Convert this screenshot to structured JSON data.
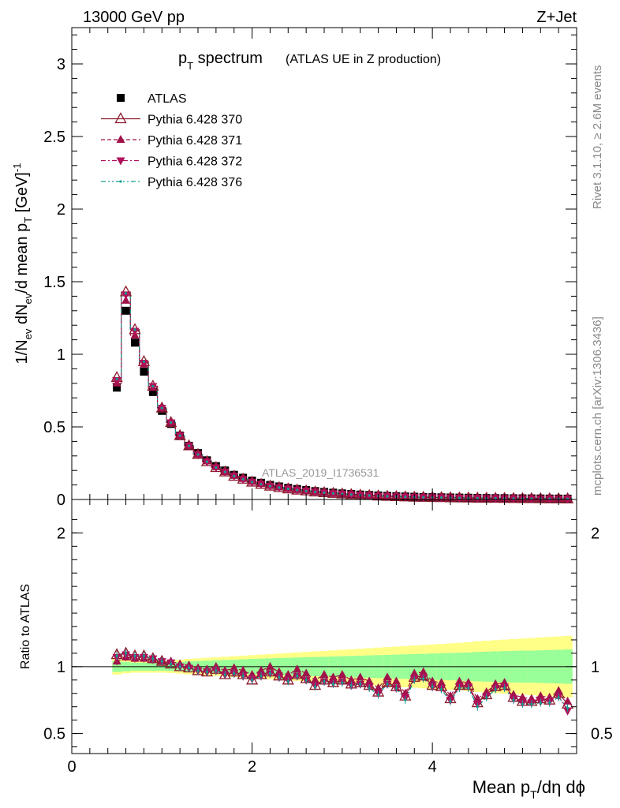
{
  "header": {
    "energy_label": "13000 GeV pp",
    "process_label": "Z+Jet"
  },
  "plot_title": {
    "main": "p",
    "main_sub": "T",
    "main_rest": " spectrum",
    "suffix": "(ATLAS UE in Z production)"
  },
  "side_labels": {
    "rivet": "Rivet 3.1.10, ≥ 2.6M events",
    "mcplots": "mcplots.cern.ch [arXiv:1306.3436]"
  },
  "watermark": "ATLAS_2019_I1736531",
  "colors": {
    "data": "#000000",
    "p370": "#8b1a2b",
    "p371": "#a0124a",
    "p372": "#b0105a",
    "p376": "#12a090",
    "band_inner": "#99ff99",
    "band_outer": "#ffff88",
    "sim_marker_fill": "#6e6e6e"
  },
  "chart_data": [
    {
      "type": "scatter",
      "title": "pT spectrum",
      "ylabel": "1/N_ev dN_ev/d mean p_T [GeV]^-1",
      "xlim": [
        0,
        5.6
      ],
      "ylim": [
        0,
        3.25
      ],
      "yticks": [
        "0",
        "0.5",
        "1",
        "1.5",
        "2",
        "2.5",
        "3"
      ],
      "legend_position": "top-left",
      "x": [
        0.5,
        0.6,
        0.7,
        0.8,
        0.9,
        1.0,
        1.1,
        1.2,
        1.3,
        1.4,
        1.5,
        1.6,
        1.7,
        1.8,
        1.9,
        2.0,
        2.1,
        2.2,
        2.3,
        2.4,
        2.5,
        2.6,
        2.7,
        2.8,
        2.9,
        3.0,
        3.1,
        3.2,
        3.3,
        3.4,
        3.5,
        3.6,
        3.7,
        3.8,
        3.9,
        4.0,
        4.1,
        4.2,
        4.3,
        4.4,
        4.5,
        4.6,
        4.7,
        4.8,
        4.9,
        5.0,
        5.1,
        5.2,
        5.3,
        5.4,
        5.5
      ],
      "series": [
        {
          "name": "ATLAS",
          "values": [
            0.77,
            1.3,
            1.08,
            0.88,
            0.74,
            0.61,
            0.52,
            0.44,
            0.37,
            0.32,
            0.27,
            0.23,
            0.2,
            0.17,
            0.15,
            0.13,
            0.115,
            0.1,
            0.09,
            0.08,
            0.072,
            0.065,
            0.058,
            0.052,
            0.047,
            0.042,
            0.038,
            0.034,
            0.031,
            0.028,
            0.025,
            0.023,
            0.021,
            0.019,
            0.017,
            0.016,
            0.015,
            0.014,
            0.013,
            0.012,
            0.011,
            0.01,
            0.0095,
            0.009,
            0.0085,
            0.008,
            0.0075,
            0.007,
            0.0066,
            0.0062,
            0.0058
          ]
        },
        {
          "name": "Pythia 6.428 370",
          "values": [
            0.84,
            1.43,
            1.17,
            0.95,
            0.78,
            0.63,
            0.53,
            0.44,
            0.37,
            0.31,
            0.26,
            0.22,
            0.19,
            0.16,
            0.14,
            0.12,
            0.105,
            0.092,
            0.082,
            0.073,
            0.065,
            0.059,
            0.052,
            0.047,
            0.042,
            0.038,
            0.034,
            0.03,
            0.027,
            0.024,
            0.022,
            0.02,
            0.018,
            0.016,
            0.015,
            0.014,
            0.013,
            0.012,
            0.011,
            0.01,
            0.0092,
            0.0085,
            0.008,
            0.0075,
            0.007,
            0.0065,
            0.006,
            0.0056,
            0.0052,
            0.0048,
            0.0045
          ]
        },
        {
          "name": "Pythia 6.428 371",
          "values": [
            0.8,
            1.37,
            1.13,
            0.93,
            0.77,
            0.63,
            0.53,
            0.44,
            0.37,
            0.31,
            0.265,
            0.225,
            0.19,
            0.165,
            0.143,
            0.123,
            0.108,
            0.095,
            0.085,
            0.075,
            0.067,
            0.06,
            0.054,
            0.048,
            0.043,
            0.039,
            0.035,
            0.031,
            0.028,
            0.025,
            0.023,
            0.021,
            0.019,
            0.017,
            0.016,
            0.014,
            0.013,
            0.012,
            0.011,
            0.0105,
            0.0095,
            0.0088,
            0.0082,
            0.0077,
            0.0072,
            0.0067,
            0.0062,
            0.0058,
            0.0054,
            0.005,
            0.0046
          ]
        },
        {
          "name": "Pythia 6.428 372",
          "values": [
            0.82,
            1.41,
            1.16,
            0.94,
            0.78,
            0.63,
            0.53,
            0.44,
            0.37,
            0.31,
            0.26,
            0.22,
            0.19,
            0.162,
            0.14,
            0.12,
            0.106,
            0.093,
            0.083,
            0.074,
            0.066,
            0.059,
            0.053,
            0.047,
            0.042,
            0.038,
            0.034,
            0.03,
            0.027,
            0.024,
            0.022,
            0.02,
            0.018,
            0.016,
            0.015,
            0.014,
            0.013,
            0.012,
            0.011,
            0.0102,
            0.0093,
            0.0086,
            0.008,
            0.0075,
            0.007,
            0.0065,
            0.006,
            0.0056,
            0.0052,
            0.0048,
            0.0044
          ]
        },
        {
          "name": "Pythia 6.428 376",
          "values": [
            0.83,
            1.42,
            1.17,
            0.95,
            0.78,
            0.63,
            0.53,
            0.44,
            0.37,
            0.31,
            0.26,
            0.22,
            0.19,
            0.162,
            0.14,
            0.12,
            0.105,
            0.092,
            0.082,
            0.073,
            0.065,
            0.058,
            0.052,
            0.047,
            0.042,
            0.038,
            0.034,
            0.03,
            0.027,
            0.024,
            0.022,
            0.02,
            0.018,
            0.016,
            0.015,
            0.014,
            0.013,
            0.012,
            0.011,
            0.0101,
            0.0092,
            0.0085,
            0.008,
            0.0074,
            0.0069,
            0.0064,
            0.0059,
            0.0055,
            0.0051,
            0.0047,
            0.0043
          ]
        }
      ]
    },
    {
      "type": "scatter",
      "ylabel": "Ratio to ATLAS",
      "xlabel": "Mean p_T/dη dϕ",
      "xlim": [
        0,
        5.6
      ],
      "ylim": [
        0.35,
        2.25
      ],
      "xticks": [
        "0",
        "2",
        "4"
      ],
      "yticks": [
        "0.5",
        "1",
        "2"
      ],
      "reference_line": 1,
      "x": [
        0.5,
        0.6,
        0.7,
        0.8,
        0.9,
        1.0,
        1.1,
        1.2,
        1.3,
        1.4,
        1.5,
        1.6,
        1.7,
        1.8,
        1.9,
        2.0,
        2.1,
        2.2,
        2.3,
        2.4,
        2.5,
        2.6,
        2.7,
        2.8,
        2.9,
        3.0,
        3.1,
        3.2,
        3.3,
        3.4,
        3.5,
        3.6,
        3.7,
        3.8,
        3.9,
        4.0,
        4.1,
        4.2,
        4.3,
        4.4,
        4.5,
        4.6,
        4.7,
        4.8,
        4.9,
        5.0,
        5.1,
        5.2,
        5.3,
        5.4,
        5.5
      ],
      "band_inner_halfwidth": [
        0.04,
        0.035,
        0.03,
        0.03,
        0.03,
        0.03,
        0.032,
        0.035,
        0.04,
        0.042,
        0.045,
        0.048,
        0.05,
        0.052,
        0.055,
        0.058,
        0.06,
        0.062,
        0.064,
        0.066,
        0.068,
        0.07,
        0.072,
        0.074,
        0.076,
        0.078,
        0.08,
        0.082,
        0.084,
        0.086,
        0.088,
        0.09,
        0.092,
        0.094,
        0.096,
        0.098,
        0.1,
        0.102,
        0.104,
        0.106,
        0.11,
        0.112,
        0.114,
        0.116,
        0.118,
        0.12,
        0.12,
        0.122,
        0.124,
        0.126,
        0.128
      ],
      "band_outer_halfwidth": [
        0.06,
        0.05,
        0.045,
        0.045,
        0.045,
        0.045,
        0.048,
        0.052,
        0.058,
        0.062,
        0.066,
        0.07,
        0.074,
        0.078,
        0.082,
        0.086,
        0.09,
        0.094,
        0.098,
        0.102,
        0.106,
        0.11,
        0.114,
        0.118,
        0.122,
        0.126,
        0.13,
        0.134,
        0.138,
        0.142,
        0.146,
        0.15,
        0.154,
        0.158,
        0.162,
        0.166,
        0.17,
        0.174,
        0.178,
        0.182,
        0.19,
        0.194,
        0.198,
        0.202,
        0.206,
        0.21,
        0.214,
        0.218,
        0.222,
        0.226,
        0.23
      ],
      "series": [
        {
          "name": "Pythia 6.428 370",
          "values": [
            1.09,
            1.1,
            1.08,
            1.08,
            1.06,
            1.04,
            1.02,
            1.0,
            0.99,
            0.97,
            0.96,
            0.98,
            0.94,
            0.96,
            0.94,
            0.9,
            0.94,
            0.96,
            0.93,
            0.9,
            0.94,
            0.91,
            0.86,
            0.9,
            0.88,
            0.9,
            0.87,
            0.88,
            0.86,
            0.81,
            0.88,
            0.85,
            0.78,
            0.92,
            0.93,
            0.86,
            0.85,
            0.76,
            0.86,
            0.86,
            0.73,
            0.79,
            0.85,
            0.86,
            0.77,
            0.74,
            0.74,
            0.76,
            0.75,
            0.8,
            0.72
          ]
        },
        {
          "name": "Pythia 6.428 371",
          "values": [
            1.04,
            1.07,
            1.06,
            1.06,
            1.05,
            1.04,
            1.04,
            1.02,
            1.01,
            0.99,
            0.98,
            1.0,
            0.97,
            0.99,
            0.97,
            0.94,
            0.97,
            1.0,
            0.96,
            0.94,
            0.98,
            0.95,
            0.9,
            0.94,
            0.92,
            0.94,
            0.9,
            0.92,
            0.89,
            0.84,
            0.92,
            0.89,
            0.8,
            0.95,
            0.96,
            0.89,
            0.88,
            0.78,
            0.89,
            0.88,
            0.76,
            0.81,
            0.87,
            0.88,
            0.79,
            0.77,
            0.76,
            0.78,
            0.77,
            0.82,
            0.74
          ]
        },
        {
          "name": "Pythia 6.428 372",
          "values": [
            1.07,
            1.09,
            1.07,
            1.07,
            1.06,
            1.04,
            1.03,
            1.0,
            0.99,
            0.97,
            0.96,
            0.97,
            0.94,
            0.95,
            0.93,
            0.91,
            0.93,
            0.95,
            0.92,
            0.9,
            0.93,
            0.9,
            0.86,
            0.89,
            0.88,
            0.89,
            0.86,
            0.87,
            0.85,
            0.8,
            0.87,
            0.84,
            0.77,
            0.91,
            0.92,
            0.85,
            0.84,
            0.75,
            0.85,
            0.85,
            0.72,
            0.78,
            0.84,
            0.85,
            0.76,
            0.73,
            0.73,
            0.74,
            0.74,
            0.78,
            0.67
          ]
        },
        {
          "name": "Pythia 6.428 376",
          "values": [
            1.08,
            1.1,
            1.08,
            1.08,
            1.06,
            1.04,
            1.02,
            1.0,
            0.99,
            0.97,
            0.96,
            0.97,
            0.94,
            0.95,
            0.93,
            0.9,
            0.93,
            0.95,
            0.92,
            0.89,
            0.93,
            0.9,
            0.85,
            0.89,
            0.87,
            0.88,
            0.86,
            0.87,
            0.84,
            0.79,
            0.87,
            0.84,
            0.75,
            0.9,
            0.91,
            0.85,
            0.83,
            0.74,
            0.84,
            0.84,
            0.7,
            0.77,
            0.83,
            0.84,
            0.75,
            0.72,
            0.72,
            0.73,
            0.73,
            0.77,
            0.69
          ]
        }
      ]
    }
  ]
}
